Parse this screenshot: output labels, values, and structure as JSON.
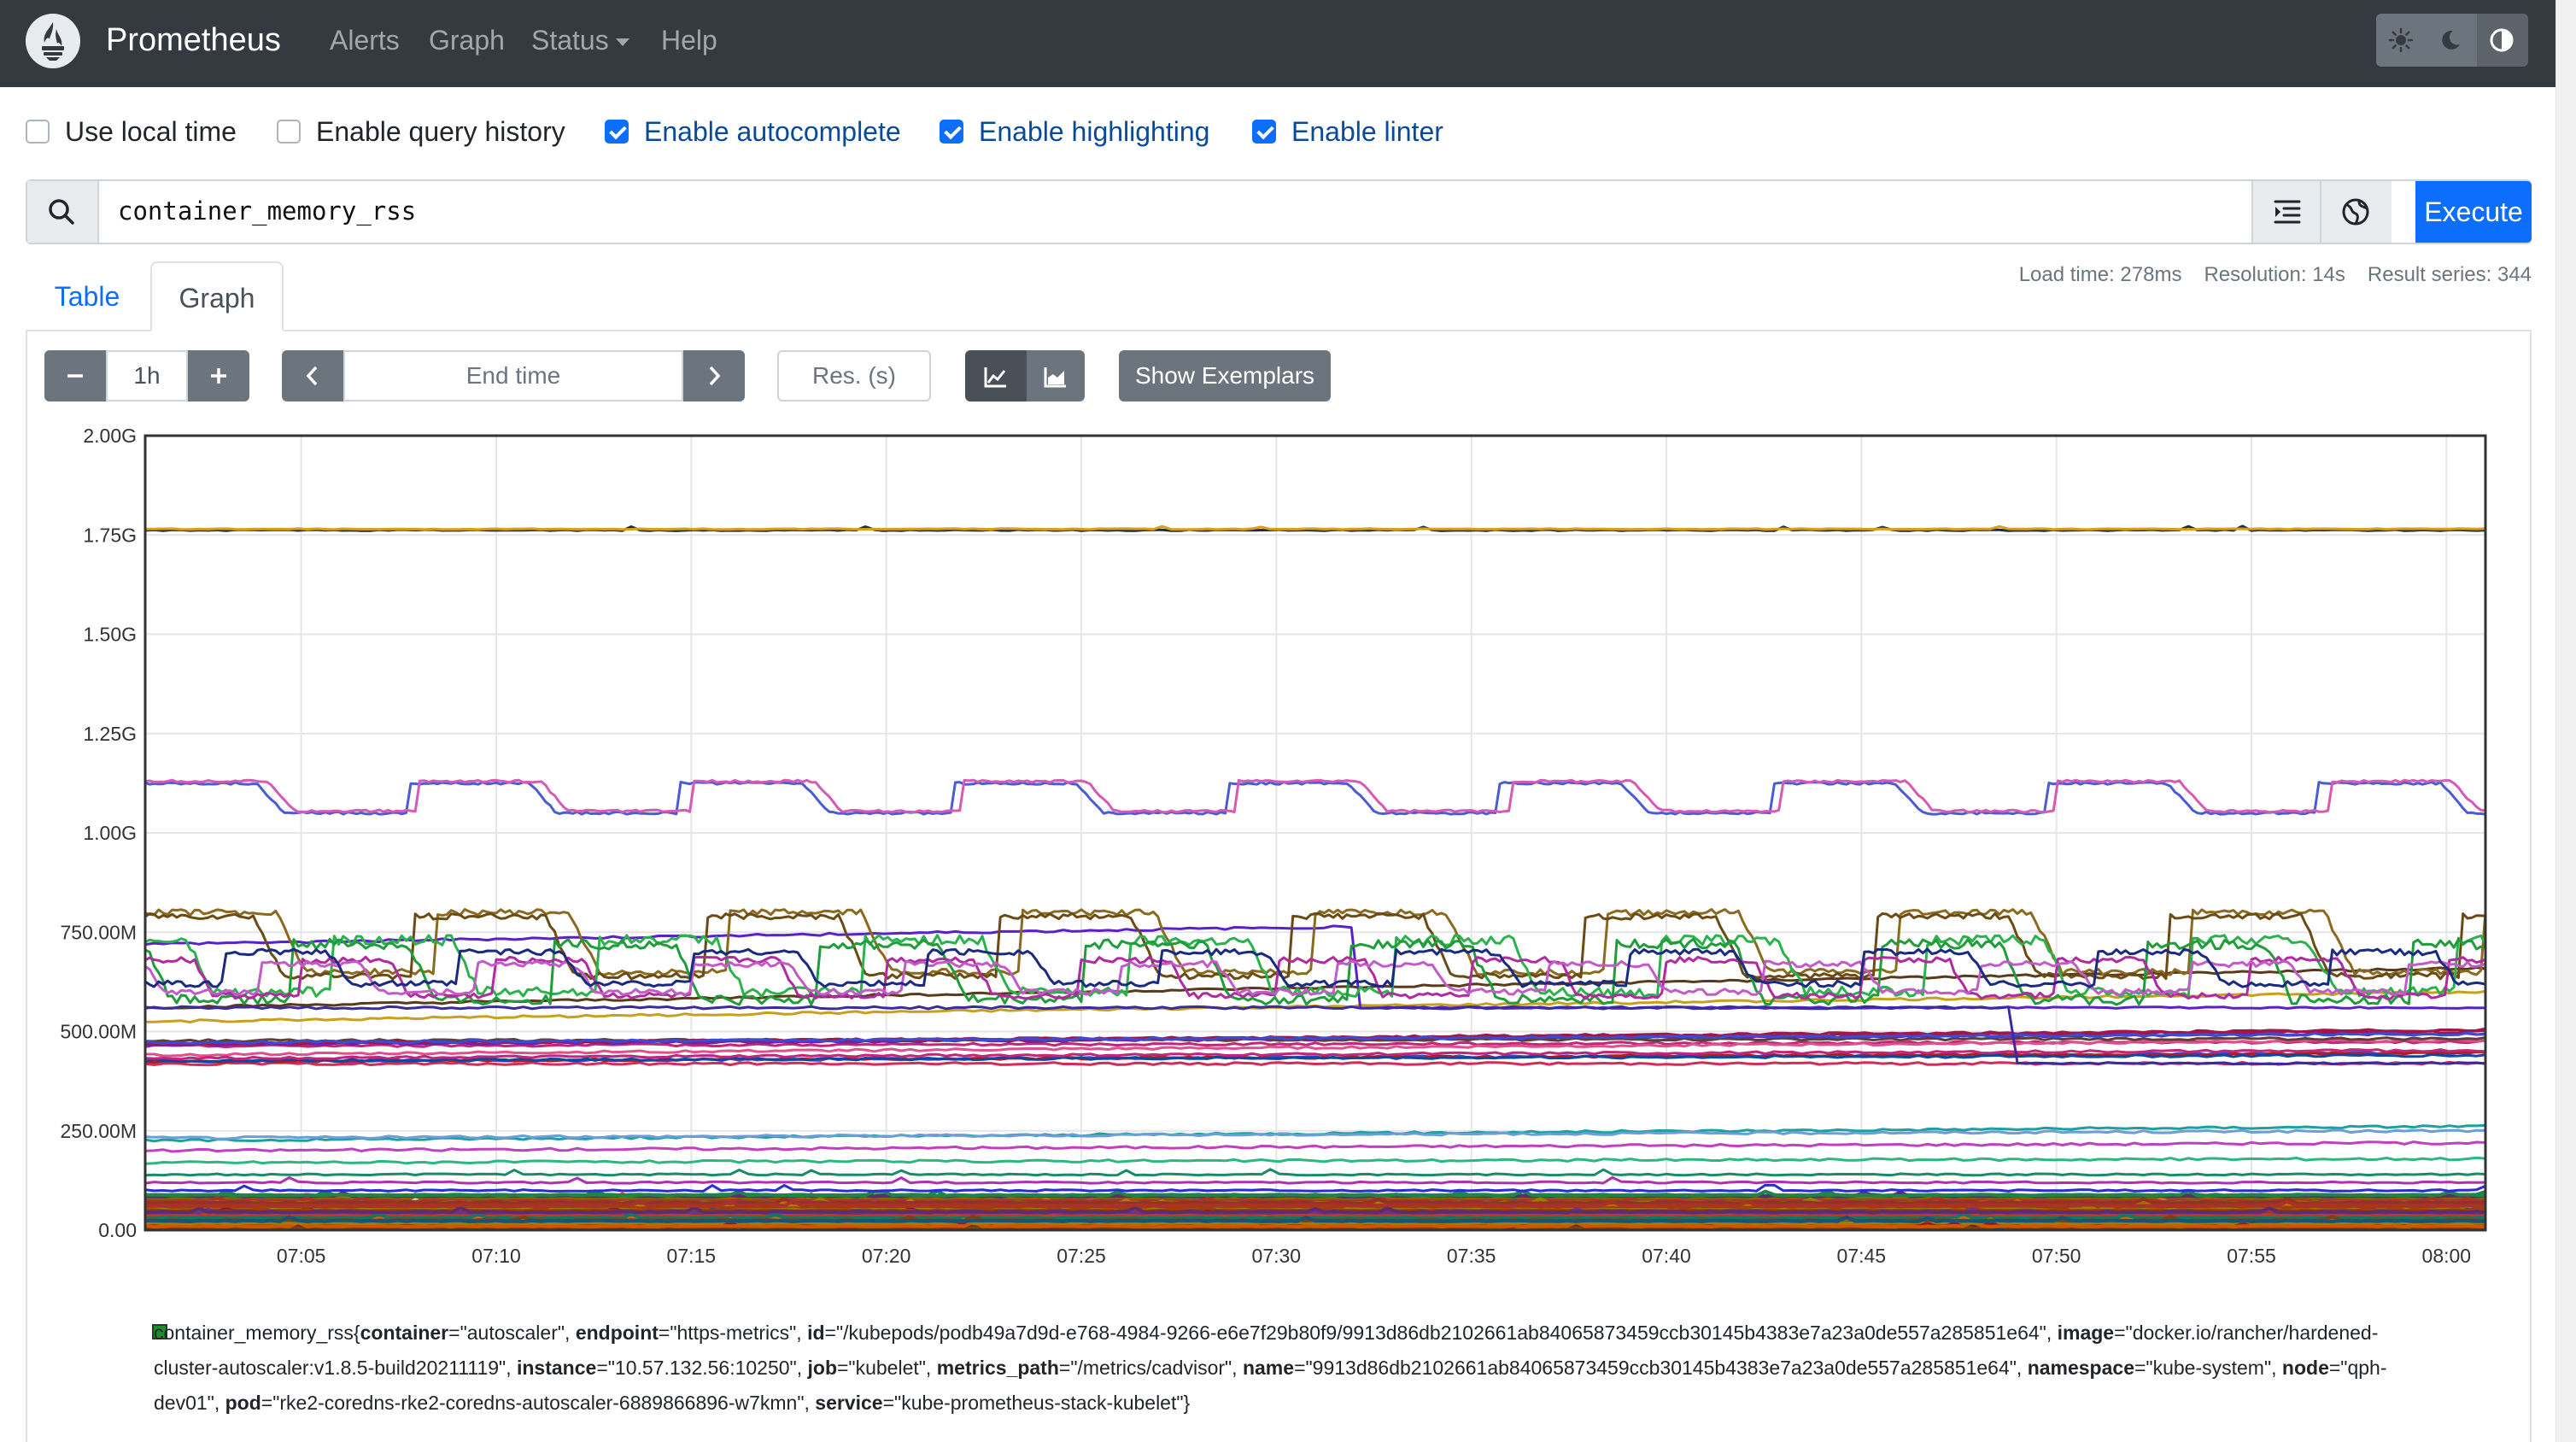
{
  "navbar": {
    "brand": "Prometheus",
    "links": [
      "Alerts",
      "Graph",
      "Status",
      "Help"
    ]
  },
  "options": [
    {
      "label": "Use local time",
      "checked": false
    },
    {
      "label": "Enable query history",
      "checked": false
    },
    {
      "label": "Enable autocomplete",
      "checked": true
    },
    {
      "label": "Enable highlighting",
      "checked": true
    },
    {
      "label": "Enable linter",
      "checked": true
    }
  ],
  "query": {
    "expression": "container_memory_rss",
    "execute_label": "Execute"
  },
  "tabs": {
    "table": "Table",
    "graph": "Graph"
  },
  "stats": {
    "load_time": "Load time: 278ms",
    "resolution": "Resolution: 14s",
    "result_series": "Result series: 344"
  },
  "controls": {
    "range": "1h",
    "end_time_placeholder": "End time",
    "resolution_placeholder": "Res. (s)",
    "exemplars_label": "Show Exemplars"
  },
  "chart_data": {
    "type": "line",
    "ylim": [
      0,
      2000000000
    ],
    "y_ticks": [
      "0.00",
      "250.00M",
      "500.00M",
      "750.00M",
      "1.00G",
      "1.25G",
      "1.50G",
      "1.75G",
      "2.00G"
    ],
    "x_ticks": [
      "07:05",
      "07:10",
      "07:15",
      "07:20",
      "07:25",
      "07:30",
      "07:35",
      "07:40",
      "07:45",
      "07:50",
      "07:55",
      "08:00"
    ],
    "x_range": [
      "07:01",
      "08:01"
    ],
    "grid": true,
    "series_count": 344,
    "representative_series": [
      {
        "color": "#d4a017",
        "approx_level_bytes": 1765000000
      },
      {
        "color": "#1f2a44",
        "approx_level_bytes": 1760000000
      },
      {
        "color": "#d65ab5",
        "approx_range_bytes": [
          1050000000,
          1130000000
        ]
      },
      {
        "color": "#4a5bd4",
        "approx_range_bytes": [
          1050000000,
          1120000000
        ]
      },
      {
        "color": "#8a6a1f",
        "approx_range_bytes": [
          650000000,
          800000000
        ]
      },
      {
        "color": "#2bb24c",
        "approx_range_bytes": [
          520000000,
          740000000
        ]
      },
      {
        "color": "#5b21c9",
        "approx_range_bytes": [
          550000000,
          800000000
        ]
      },
      {
        "color": "#5a3a1a",
        "approx_range_bytes": [
          580000000,
          680000000
        ]
      },
      {
        "color": "#b02aa0",
        "approx_range_bytes": [
          580000000,
          680000000
        ]
      },
      {
        "color": "#c8a020",
        "approx_range_bytes": [
          520000000,
          590000000
        ]
      },
      {
        "color": "#d22c5a",
        "approx_level_bytes": 460000000
      },
      {
        "color": "#3b4bd8",
        "approx_level_bytes": 450000000
      },
      {
        "color": "#1fa0a0",
        "approx_level_bytes": 240000000
      },
      {
        "color": "#c040c0",
        "approx_level_bytes": 200000000
      },
      {
        "color": "#2ab880",
        "approx_level_bytes": 180000000
      }
    ]
  },
  "legend": {
    "metric": "container_memory_rss",
    "color": "#1a8e2a",
    "labels": [
      {
        "key": "container",
        "value": "\"autoscaler\""
      },
      {
        "key": "endpoint",
        "value": "\"https-metrics\""
      },
      {
        "key": "id",
        "value": "\"/kubepods/podb49a7d9d-e768-4984-9266-e6e7f29b80f9/9913d86db2102661ab84065873459ccb30145b4383e7a23a0de557a285851e64\""
      },
      {
        "key": "image",
        "value": "\"docker.io/rancher/hardened-cluster-autoscaler:v1.8.5-build20211119\""
      },
      {
        "key": "instance",
        "value": "\"10.57.132.56:10250\""
      },
      {
        "key": "job",
        "value": "\"kubelet\""
      },
      {
        "key": "metrics_path",
        "value": "\"/metrics/cadvisor\""
      },
      {
        "key": "name",
        "value": "\"9913d86db2102661ab84065873459ccb30145b4383e7a23a0de557a285851e64\""
      },
      {
        "key": "namespace",
        "value": "\"kube-system\""
      },
      {
        "key": "node",
        "value": "\"qph-dev01\""
      },
      {
        "key": "pod",
        "value": "\"rke2-coredns-rke2-coredns-autoscaler-6889866896-w7kmn\""
      },
      {
        "key": "service",
        "value": "\"kube-prometheus-stack-kubelet\""
      }
    ]
  }
}
